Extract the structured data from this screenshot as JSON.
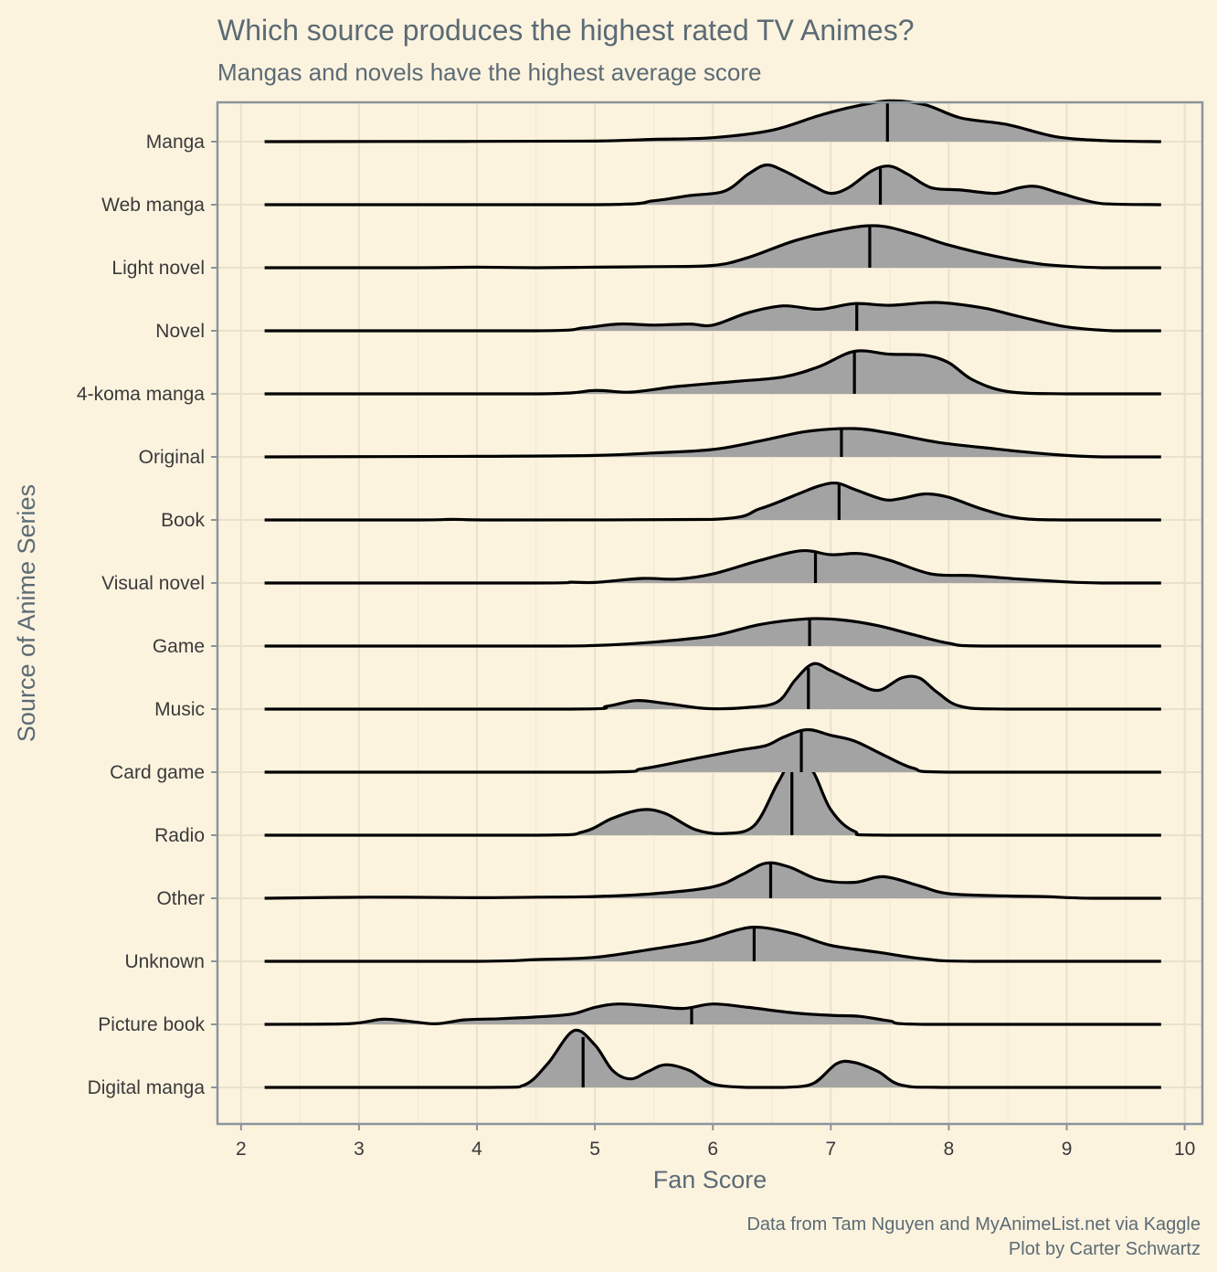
{
  "chart_data": {
    "type": "ridgeline",
    "title": "Which source produces the highest rated TV Animes?",
    "subtitle": "Mangas and novels have the highest average score",
    "xlabel": "Fan Score",
    "ylabel": "Source of Anime Series",
    "caption_lines": [
      "Data from Tam Nguyen and MyAnimeList.net via Kaggle",
      "Plot by Carter Schwartz"
    ],
    "xlim": [
      1.8,
      10.15
    ],
    "x_ticks": [
      2,
      3,
      4,
      5,
      6,
      7,
      8,
      9,
      10
    ],
    "x_range": [
      2.2,
      9.8
    ],
    "grid": true,
    "colors": {
      "background": "#fcf3df",
      "fill": "#a3a3a3",
      "line": "#000000"
    },
    "series": [
      {
        "name": "Manga",
        "mean": 7.48,
        "density": [
          [
            2.2,
            0
          ],
          [
            4,
            0.005
          ],
          [
            5,
            0.01
          ],
          [
            5.5,
            0.04
          ],
          [
            6,
            0.07
          ],
          [
            6.5,
            0.2
          ],
          [
            6.9,
            0.46
          ],
          [
            7.2,
            0.62
          ],
          [
            7.5,
            0.72
          ],
          [
            7.8,
            0.65
          ],
          [
            8.1,
            0.42
          ],
          [
            8.5,
            0.3
          ],
          [
            8.9,
            0.09
          ],
          [
            9.3,
            0.02
          ],
          [
            9.8,
            0
          ]
        ]
      },
      {
        "name": "Web manga",
        "mean": 7.42,
        "density": [
          [
            2.2,
            0
          ],
          [
            5,
            0
          ],
          [
            5.5,
            0.07
          ],
          [
            5.8,
            0.16
          ],
          [
            6.1,
            0.24
          ],
          [
            6.3,
            0.54
          ],
          [
            6.45,
            0.7
          ],
          [
            6.6,
            0.6
          ],
          [
            6.85,
            0.33
          ],
          [
            7.0,
            0.2
          ],
          [
            7.15,
            0.3
          ],
          [
            7.35,
            0.6
          ],
          [
            7.5,
            0.68
          ],
          [
            7.65,
            0.54
          ],
          [
            7.85,
            0.3
          ],
          [
            8.1,
            0.26
          ],
          [
            8.4,
            0.2
          ],
          [
            8.6,
            0.3
          ],
          [
            8.75,
            0.32
          ],
          [
            8.95,
            0.2
          ],
          [
            9.3,
            0.02
          ],
          [
            9.8,
            0
          ]
        ]
      },
      {
        "name": "Light novel",
        "mean": 7.33,
        "density": [
          [
            2.2,
            0
          ],
          [
            3.5,
            0
          ],
          [
            4,
            0.01
          ],
          [
            4.5,
            0
          ],
          [
            5,
            0.01
          ],
          [
            5.5,
            0.02
          ],
          [
            6,
            0.04
          ],
          [
            6.3,
            0.18
          ],
          [
            6.7,
            0.48
          ],
          [
            7.1,
            0.68
          ],
          [
            7.4,
            0.74
          ],
          [
            7.7,
            0.6
          ],
          [
            8.0,
            0.4
          ],
          [
            8.4,
            0.2
          ],
          [
            8.8,
            0.06
          ],
          [
            9.3,
            0
          ],
          [
            9.8,
            0
          ]
        ]
      },
      {
        "name": "Novel",
        "mean": 7.22,
        "density": [
          [
            2.2,
            0
          ],
          [
            4.5,
            0
          ],
          [
            4.9,
            0.05
          ],
          [
            5.2,
            0.12
          ],
          [
            5.5,
            0.1
          ],
          [
            5.8,
            0.12
          ],
          [
            6.0,
            0.1
          ],
          [
            6.3,
            0.32
          ],
          [
            6.6,
            0.44
          ],
          [
            6.9,
            0.38
          ],
          [
            7.2,
            0.48
          ],
          [
            7.5,
            0.45
          ],
          [
            7.9,
            0.5
          ],
          [
            8.3,
            0.4
          ],
          [
            8.6,
            0.25
          ],
          [
            9.0,
            0.07
          ],
          [
            9.4,
            0
          ],
          [
            9.8,
            0
          ]
        ]
      },
      {
        "name": "4-koma manga",
        "mean": 7.2,
        "density": [
          [
            2.2,
            0
          ],
          [
            4.5,
            0
          ],
          [
            5.0,
            0.06
          ],
          [
            5.3,
            0.03
          ],
          [
            5.7,
            0.13
          ],
          [
            6.2,
            0.22
          ],
          [
            6.6,
            0.3
          ],
          [
            6.9,
            0.48
          ],
          [
            7.2,
            0.75
          ],
          [
            7.5,
            0.7
          ],
          [
            7.8,
            0.68
          ],
          [
            8.0,
            0.55
          ],
          [
            8.2,
            0.25
          ],
          [
            8.5,
            0.04
          ],
          [
            9.0,
            0
          ],
          [
            9.8,
            0
          ]
        ]
      },
      {
        "name": "Original",
        "mean": 7.09,
        "density": [
          [
            2.2,
            0
          ],
          [
            4,
            0.01
          ],
          [
            5,
            0.025
          ],
          [
            5.5,
            0.07
          ],
          [
            6.0,
            0.13
          ],
          [
            6.4,
            0.28
          ],
          [
            6.8,
            0.45
          ],
          [
            7.2,
            0.5
          ],
          [
            7.5,
            0.42
          ],
          [
            7.9,
            0.26
          ],
          [
            8.4,
            0.14
          ],
          [
            8.9,
            0.04
          ],
          [
            9.3,
            0
          ],
          [
            9.8,
            0
          ]
        ]
      },
      {
        "name": "Book",
        "mean": 7.07,
        "density": [
          [
            2.2,
            0
          ],
          [
            3.5,
            0
          ],
          [
            3.8,
            0.01
          ],
          [
            4.2,
            0
          ],
          [
            6,
            0.01
          ],
          [
            6.4,
            0.2
          ],
          [
            6.7,
            0.44
          ],
          [
            6.9,
            0.6
          ],
          [
            7.05,
            0.65
          ],
          [
            7.2,
            0.54
          ],
          [
            7.45,
            0.36
          ],
          [
            7.6,
            0.38
          ],
          [
            7.8,
            0.46
          ],
          [
            8.0,
            0.4
          ],
          [
            8.3,
            0.18
          ],
          [
            8.6,
            0.03
          ],
          [
            9.0,
            0
          ],
          [
            9.8,
            0
          ]
        ]
      },
      {
        "name": "Visual novel",
        "mean": 6.87,
        "density": [
          [
            2.2,
            0
          ],
          [
            4.5,
            0
          ],
          [
            4.8,
            0.015
          ],
          [
            5.0,
            0.01
          ],
          [
            5.4,
            0.08
          ],
          [
            5.7,
            0.07
          ],
          [
            6.0,
            0.16
          ],
          [
            6.4,
            0.4
          ],
          [
            6.75,
            0.57
          ],
          [
            7.0,
            0.5
          ],
          [
            7.25,
            0.52
          ],
          [
            7.5,
            0.4
          ],
          [
            7.85,
            0.16
          ],
          [
            8.2,
            0.13
          ],
          [
            8.6,
            0.07
          ],
          [
            9.0,
            0.02
          ],
          [
            9.3,
            0
          ],
          [
            9.8,
            0
          ]
        ]
      },
      {
        "name": "Game",
        "mean": 6.82,
        "density": [
          [
            2.2,
            0
          ],
          [
            4.5,
            0
          ],
          [
            5,
            0.01
          ],
          [
            5.5,
            0.07
          ],
          [
            6.0,
            0.18
          ],
          [
            6.4,
            0.38
          ],
          [
            6.8,
            0.48
          ],
          [
            7.1,
            0.46
          ],
          [
            7.4,
            0.36
          ],
          [
            7.7,
            0.2
          ],
          [
            8.0,
            0.05
          ],
          [
            8.3,
            0
          ],
          [
            9.8,
            0
          ]
        ]
      },
      {
        "name": "Music",
        "mean": 6.81,
        "density": [
          [
            2.2,
            0
          ],
          [
            4.8,
            0
          ],
          [
            5.1,
            0.05
          ],
          [
            5.35,
            0.15
          ],
          [
            5.6,
            0.1
          ],
          [
            5.95,
            0.01
          ],
          [
            6.3,
            0.03
          ],
          [
            6.55,
            0.13
          ],
          [
            6.7,
            0.52
          ],
          [
            6.85,
            0.8
          ],
          [
            7.0,
            0.68
          ],
          [
            7.2,
            0.48
          ],
          [
            7.4,
            0.33
          ],
          [
            7.6,
            0.55
          ],
          [
            7.75,
            0.55
          ],
          [
            7.9,
            0.3
          ],
          [
            8.1,
            0.05
          ],
          [
            8.5,
            0
          ],
          [
            9.8,
            0
          ]
        ]
      },
      {
        "name": "Card game",
        "mean": 6.75,
        "density": [
          [
            2.2,
            0
          ],
          [
            5,
            0
          ],
          [
            5.4,
            0.06
          ],
          [
            5.8,
            0.22
          ],
          [
            6.2,
            0.38
          ],
          [
            6.45,
            0.47
          ],
          [
            6.6,
            0.62
          ],
          [
            6.8,
            0.75
          ],
          [
            7.0,
            0.65
          ],
          [
            7.2,
            0.55
          ],
          [
            7.45,
            0.3
          ],
          [
            7.7,
            0.07
          ],
          [
            8.0,
            0
          ],
          [
            9.8,
            0
          ]
        ]
      },
      {
        "name": "Radio",
        "mean": 6.67,
        "density": [
          [
            2.2,
            0
          ],
          [
            4.5,
            0
          ],
          [
            4.9,
            0.06
          ],
          [
            5.15,
            0.3
          ],
          [
            5.4,
            0.45
          ],
          [
            5.6,
            0.38
          ],
          [
            5.85,
            0.1
          ],
          [
            6.1,
            0.03
          ],
          [
            6.35,
            0.17
          ],
          [
            6.55,
            0.92
          ],
          [
            6.7,
            1.4
          ],
          [
            6.85,
            1.12
          ],
          [
            7.0,
            0.45
          ],
          [
            7.2,
            0.07
          ],
          [
            7.5,
            0
          ],
          [
            9.8,
            0
          ]
        ]
      },
      {
        "name": "Other",
        "mean": 6.49,
        "density": [
          [
            2.2,
            0
          ],
          [
            3.1,
            0.02
          ],
          [
            4,
            0.01
          ],
          [
            4.5,
            0.02
          ],
          [
            5,
            0.03
          ],
          [
            5.5,
            0.08
          ],
          [
            6.0,
            0.2
          ],
          [
            6.25,
            0.42
          ],
          [
            6.45,
            0.62
          ],
          [
            6.65,
            0.55
          ],
          [
            6.9,
            0.33
          ],
          [
            7.2,
            0.28
          ],
          [
            7.45,
            0.38
          ],
          [
            7.75,
            0.22
          ],
          [
            8.0,
            0.08
          ],
          [
            8.5,
            0.04
          ],
          [
            8.8,
            0.03
          ],
          [
            9.2,
            0
          ],
          [
            9.8,
            0
          ]
        ]
      },
      {
        "name": "Unknown",
        "mean": 6.35,
        "density": [
          [
            2.2,
            0
          ],
          [
            4,
            0
          ],
          [
            4.5,
            0.03
          ],
          [
            5.0,
            0.07
          ],
          [
            5.5,
            0.22
          ],
          [
            5.9,
            0.36
          ],
          [
            6.2,
            0.55
          ],
          [
            6.4,
            0.6
          ],
          [
            6.7,
            0.48
          ],
          [
            7.0,
            0.28
          ],
          [
            7.4,
            0.16
          ],
          [
            7.8,
            0.04
          ],
          [
            8.2,
            0
          ],
          [
            9.8,
            0
          ]
        ]
      },
      {
        "name": "Picture book",
        "mean": 5.82,
        "density": [
          [
            2.2,
            0
          ],
          [
            2.9,
            0.01
          ],
          [
            3.2,
            0.09
          ],
          [
            3.4,
            0.06
          ],
          [
            3.65,
            0.01
          ],
          [
            3.9,
            0.08
          ],
          [
            4.2,
            0.1
          ],
          [
            4.5,
            0.13
          ],
          [
            4.8,
            0.18
          ],
          [
            5.0,
            0.3
          ],
          [
            5.2,
            0.36
          ],
          [
            5.5,
            0.32
          ],
          [
            5.75,
            0.28
          ],
          [
            6.0,
            0.36
          ],
          [
            6.3,
            0.3
          ],
          [
            6.7,
            0.2
          ],
          [
            7.0,
            0.16
          ],
          [
            7.25,
            0.14
          ],
          [
            7.5,
            0.06
          ],
          [
            7.8,
            0
          ],
          [
            9.8,
            0
          ]
        ]
      },
      {
        "name": "Digital manga",
        "mean": 4.9,
        "density": [
          [
            2.2,
            0
          ],
          [
            4.1,
            0
          ],
          [
            4.4,
            0.04
          ],
          [
            4.6,
            0.42
          ],
          [
            4.82,
            1.0
          ],
          [
            5.0,
            0.75
          ],
          [
            5.15,
            0.3
          ],
          [
            5.3,
            0.15
          ],
          [
            5.45,
            0.28
          ],
          [
            5.6,
            0.4
          ],
          [
            5.8,
            0.3
          ],
          [
            6.0,
            0.06
          ],
          [
            6.3,
            0
          ],
          [
            6.6,
            0
          ],
          [
            6.85,
            0.07
          ],
          [
            7.05,
            0.42
          ],
          [
            7.2,
            0.44
          ],
          [
            7.4,
            0.28
          ],
          [
            7.6,
            0.04
          ],
          [
            8.0,
            0
          ],
          [
            9.8,
            0
          ]
        ]
      }
    ]
  }
}
